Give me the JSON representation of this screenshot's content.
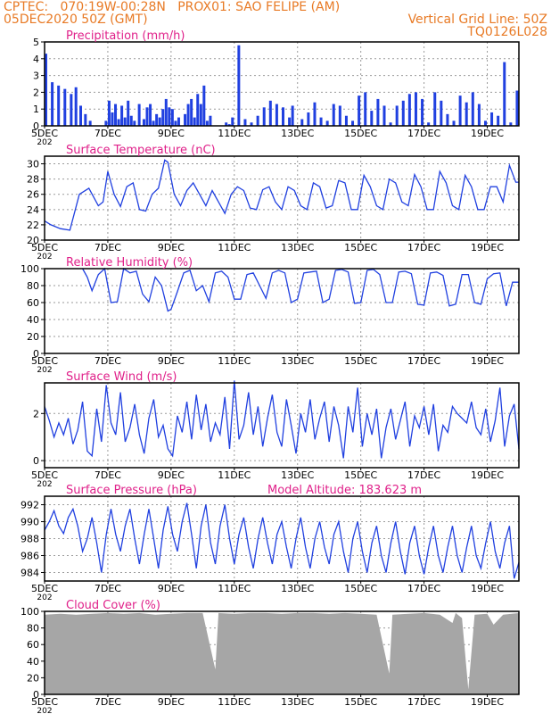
{
  "header": {
    "line1": "CPTEC:   070:19W-00:28N   PROX01: SAO FELIPE (AM)",
    "line2_left": "05DEC2020 50Z (GMT)",
    "line2_right": "Vertical Grid Line: 50Z",
    "line3_right": "TQ0126L028"
  },
  "x_axis": {
    "start_day": 5,
    "end_day": 20,
    "tick_days": [
      5,
      7,
      9,
      11,
      13,
      15,
      17,
      19
    ],
    "tick_labels": [
      "5DEC",
      "7DEC",
      "9DEC",
      "11DEC",
      "13DEC",
      "15DEC",
      "17DEC",
      "19DEC"
    ],
    "year_fragment": "202"
  },
  "colors": {
    "title": "#e0218a",
    "header": "#e87a25",
    "series": "#2040e0",
    "cloud": "#a6a6a6",
    "grid": "#9a9a9a"
  },
  "chart_data": [
    {
      "type": "bar",
      "title": "Precipitation (mm/h)",
      "ylim": [
        0,
        5
      ],
      "yticks": [
        0,
        1,
        2,
        3,
        4,
        5
      ],
      "x": [
        5.0,
        5.2,
        5.4,
        5.6,
        5.8,
        5.95,
        6.1,
        6.25,
        6.4,
        6.6,
        6.8,
        6.9,
        7.0,
        7.1,
        7.2,
        7.3,
        7.4,
        7.5,
        7.6,
        7.7,
        7.8,
        7.95,
        8.1,
        8.2,
        8.3,
        8.4,
        8.5,
        8.6,
        8.7,
        8.8,
        8.9,
        9.0,
        9.1,
        9.2,
        9.3,
        9.4,
        9.5,
        9.6,
        9.7,
        9.8,
        9.9,
        10.0,
        10.1,
        10.2,
        10.3,
        10.4,
        10.5,
        10.6,
        10.7,
        10.8,
        10.9,
        11.0,
        11.1,
        11.3,
        11.5,
        11.7,
        11.9,
        12.1,
        12.3,
        12.5,
        12.7,
        12.8,
        12.9,
        13.1,
        13.3,
        13.5,
        13.7,
        13.9,
        14.1,
        14.3,
        14.5,
        14.7,
        14.9,
        15.1,
        15.3,
        15.5,
        15.7,
        15.9,
        16.1,
        16.3,
        16.5,
        16.7,
        16.9,
        17.1,
        17.3,
        17.5,
        17.7,
        17.9,
        18.1,
        18.3,
        18.5,
        18.7,
        18.9,
        19.1,
        19.3,
        19.5,
        19.7,
        19.9
      ],
      "values": [
        4.3,
        2.6,
        2.4,
        2.2,
        1.9,
        2.3,
        1.2,
        0.7,
        0.3,
        0.0,
        0.0,
        0.3,
        1.5,
        0.8,
        1.3,
        0.4,
        1.2,
        0.5,
        1.5,
        0.6,
        0.3,
        1.3,
        0.4,
        1.1,
        1.3,
        0.3,
        0.7,
        0.5,
        1.0,
        1.6,
        1.1,
        1.0,
        0.3,
        0.5,
        0.0,
        0.7,
        1.3,
        1.6,
        0.5,
        1.9,
        1.3,
        2.4,
        0.3,
        0.6,
        0.0,
        0.0,
        0.0,
        0.0,
        0.2,
        0.1,
        0.5,
        0.0,
        4.8,
        0.4,
        0.2,
        0.6,
        1.1,
        1.5,
        1.3,
        1.1,
        0.5,
        1.2,
        0.0,
        0.4,
        0.8,
        1.4,
        0.5,
        0.3,
        1.3,
        1.2,
        0.6,
        0.3,
        1.8,
        2.0,
        0.9,
        1.6,
        1.2,
        0.2,
        1.2,
        1.5,
        1.9,
        2.0,
        1.6,
        0.2,
        2.0,
        1.5,
        0.7,
        0.3,
        1.8,
        1.4,
        2.0,
        1.3,
        0.3,
        0.8,
        0.6,
        3.8,
        0.2,
        2.1
      ]
    },
    {
      "type": "line",
      "title": "Surface Temperature (nC)",
      "ylim": [
        20,
        31
      ],
      "yticks": [
        20,
        22,
        24,
        26,
        28,
        30
      ],
      "x": [
        5.0,
        5.2,
        5.5,
        5.8,
        6.1,
        6.4,
        6.7,
        6.85,
        7.0,
        7.2,
        7.4,
        7.6,
        7.8,
        8.0,
        8.2,
        8.4,
        8.6,
        8.8,
        8.9,
        9.1,
        9.3,
        9.5,
        9.7,
        9.9,
        10.1,
        10.3,
        10.5,
        10.7,
        10.9,
        11.1,
        11.3,
        11.5,
        11.7,
        11.9,
        12.1,
        12.3,
        12.5,
        12.7,
        12.9,
        13.1,
        13.3,
        13.5,
        13.7,
        13.9,
        14.1,
        14.3,
        14.5,
        14.7,
        14.9,
        15.1,
        15.3,
        15.5,
        15.7,
        15.9,
        16.1,
        16.3,
        16.5,
        16.7,
        16.9,
        17.1,
        17.3,
        17.5,
        17.7,
        17.9,
        18.1,
        18.3,
        18.5,
        18.7,
        18.9,
        19.1,
        19.3,
        19.5,
        19.7,
        19.9,
        20.0
      ],
      "values": [
        22.5,
        22.0,
        21.5,
        21.3,
        26.0,
        26.8,
        24.5,
        25.0,
        29.0,
        26.0,
        24.4,
        27.0,
        27.5,
        24.0,
        23.8,
        26.0,
        26.8,
        30.5,
        30.2,
        26.0,
        24.5,
        26.5,
        27.5,
        26.0,
        24.5,
        26.5,
        25.0,
        23.5,
        26.0,
        27.0,
        26.5,
        24.2,
        24.0,
        26.6,
        27.0,
        25.0,
        24.0,
        27.0,
        26.5,
        24.5,
        24.0,
        27.5,
        27.0,
        24.2,
        24.5,
        27.8,
        27.5,
        24.0,
        24.0,
        28.5,
        27.0,
        24.5,
        24.0,
        28.0,
        27.5,
        25.0,
        24.5,
        28.6,
        27.0,
        24.0,
        24.0,
        29.0,
        27.5,
        24.5,
        24.0,
        28.5,
        27.0,
        24.0,
        24.0,
        27.0,
        27.0,
        25.0,
        29.8,
        27.6,
        27.6
      ]
    },
    {
      "type": "line",
      "title": "Relative Humidity (%)",
      "ylim": [
        0,
        100
      ],
      "yticks": [
        0,
        20,
        40,
        60,
        80,
        100
      ],
      "x": [
        6.2,
        6.35,
        6.5,
        6.7,
        6.9,
        7.0,
        7.1,
        7.3,
        7.5,
        7.7,
        7.9,
        8.1,
        8.3,
        8.5,
        8.7,
        8.9,
        9.0,
        9.2,
        9.4,
        9.6,
        9.8,
        10.0,
        10.2,
        10.4,
        10.6,
        10.8,
        11.0,
        11.2,
        11.4,
        11.6,
        11.8,
        12.0,
        12.2,
        12.4,
        12.6,
        12.8,
        13.0,
        13.2,
        13.4,
        13.6,
        13.8,
        14.0,
        14.2,
        14.4,
        14.6,
        14.8,
        15.0,
        15.2,
        15.4,
        15.6,
        15.8,
        16.0,
        16.2,
        16.4,
        16.6,
        16.8,
        17.0,
        17.2,
        17.4,
        17.6,
        17.8,
        18.0,
        18.2,
        18.4,
        18.6,
        18.8,
        19.0,
        19.2,
        19.4,
        19.6,
        19.8,
        20.0
      ],
      "values": [
        100,
        90,
        74,
        93,
        100,
        80,
        60,
        61,
        100,
        95,
        97,
        70,
        61,
        90,
        80,
        50,
        52,
        73,
        95,
        98,
        74,
        80,
        61,
        95,
        97,
        90,
        64,
        64,
        93,
        95,
        80,
        65,
        95,
        98,
        95,
        60,
        64,
        95,
        96,
        97,
        60,
        64,
        98,
        99,
        96,
        59,
        60,
        98,
        99,
        93,
        60,
        60,
        96,
        97,
        94,
        58,
        57,
        95,
        96,
        92,
        56,
        58,
        93,
        93,
        60,
        58,
        88,
        94,
        95,
        56,
        84,
        84
      ]
    },
    {
      "type": "line",
      "title": "Surface Wind (m/s)",
      "ylim": [
        -0.3,
        3.3
      ],
      "yticks": [
        0,
        2
      ],
      "x": [
        5.0,
        5.15,
        5.3,
        5.45,
        5.6,
        5.75,
        5.9,
        6.05,
        6.2,
        6.35,
        6.5,
        6.65,
        6.8,
        6.95,
        7.1,
        7.25,
        7.4,
        7.55,
        7.7,
        7.85,
        8.0,
        8.15,
        8.3,
        8.45,
        8.6,
        8.75,
        8.9,
        9.05,
        9.2,
        9.35,
        9.5,
        9.65,
        9.8,
        9.95,
        10.1,
        10.25,
        10.4,
        10.55,
        10.7,
        10.85,
        11.0,
        11.15,
        11.3,
        11.45,
        11.6,
        11.75,
        11.9,
        12.05,
        12.2,
        12.35,
        12.5,
        12.65,
        12.8,
        12.95,
        13.1,
        13.25,
        13.4,
        13.55,
        13.7,
        13.85,
        14.0,
        14.15,
        14.3,
        14.45,
        14.6,
        14.75,
        14.9,
        15.05,
        15.2,
        15.35,
        15.5,
        15.65,
        15.8,
        15.95,
        16.1,
        16.25,
        16.4,
        16.55,
        16.7,
        16.85,
        17.0,
        17.15,
        17.3,
        17.45,
        17.6,
        17.75,
        17.9,
        18.05,
        18.2,
        18.35,
        18.5,
        18.65,
        18.8,
        18.95,
        19.1,
        19.25,
        19.4,
        19.55,
        19.7,
        19.85,
        20.0
      ],
      "values": [
        2.3,
        1.7,
        1.0,
        1.6,
        1.1,
        1.8,
        0.7,
        1.3,
        2.5,
        0.4,
        0.2,
        2.2,
        0.8,
        3.2,
        1.6,
        1.1,
        2.9,
        0.8,
        1.4,
        2.4,
        1.1,
        0.3,
        1.8,
        2.6,
        1.0,
        1.5,
        0.5,
        0.2,
        1.9,
        1.2,
        2.5,
        0.9,
        2.8,
        1.3,
        2.4,
        0.8,
        1.6,
        1.1,
        2.7,
        0.5,
        3.4,
        0.9,
        1.5,
        2.9,
        1.1,
        2.3,
        0.6,
        1.8,
        2.8,
        1.2,
        0.6,
        2.6,
        1.5,
        0.3,
        2.0,
        1.2,
        2.6,
        0.9,
        1.8,
        2.5,
        0.8,
        2.3,
        1.5,
        0.1,
        2.3,
        1.2,
        3.1,
        0.6,
        2.0,
        1.1,
        2.2,
        0.1,
        1.4,
        2.2,
        0.9,
        1.7,
        2.5,
        0.6,
        1.9,
        1.4,
        2.3,
        1.1,
        2.4,
        0.4,
        1.5,
        1.2,
        2.3,
        2.0,
        1.8,
        1.6,
        2.5,
        1.4,
        1.1,
        2.2,
        0.8,
        1.7,
        3.1,
        0.6,
        1.9,
        2.4,
        0.5
      ]
    },
    {
      "type": "line",
      "title": "Surface Pressure (hPa)",
      "annotation": "Model Altitude: 183.623  m",
      "ylim": [
        983,
        993
      ],
      "yticks": [
        984,
        986,
        988,
        990,
        992
      ],
      "x": [
        5.0,
        5.15,
        5.3,
        5.45,
        5.6,
        5.75,
        5.9,
        6.05,
        6.2,
        6.35,
        6.5,
        6.65,
        6.8,
        6.95,
        7.1,
        7.25,
        7.4,
        7.55,
        7.7,
        7.85,
        8.0,
        8.15,
        8.3,
        8.45,
        8.6,
        8.75,
        8.9,
        9.05,
        9.2,
        9.35,
        9.5,
        9.65,
        9.8,
        9.95,
        10.1,
        10.25,
        10.4,
        10.55,
        10.7,
        10.85,
        11.0,
        11.15,
        11.3,
        11.45,
        11.6,
        11.75,
        11.9,
        12.05,
        12.2,
        12.35,
        12.5,
        12.65,
        12.8,
        12.95,
        13.1,
        13.25,
        13.4,
        13.55,
        13.7,
        13.85,
        14.0,
        14.15,
        14.3,
        14.45,
        14.6,
        14.75,
        14.9,
        15.05,
        15.2,
        15.35,
        15.5,
        15.65,
        15.8,
        15.95,
        16.1,
        16.25,
        16.4,
        16.55,
        16.7,
        16.85,
        17.0,
        17.15,
        17.3,
        17.45,
        17.6,
        17.75,
        17.9,
        18.05,
        18.2,
        18.35,
        18.5,
        18.65,
        18.8,
        18.95,
        19.1,
        19.25,
        19.4,
        19.55,
        19.7,
        19.85,
        20.0
      ],
      "values": [
        989.0,
        990.0,
        991.3,
        989.5,
        988.6,
        990.5,
        991.5,
        989.5,
        986.5,
        988.0,
        990.5,
        987.5,
        984.0,
        988.5,
        991.5,
        988.5,
        986.5,
        989.5,
        991.5,
        988.0,
        985.0,
        988.5,
        991.5,
        988.0,
        984.5,
        989.0,
        991.8,
        988.5,
        986.5,
        990.0,
        992.2,
        988.5,
        984.5,
        989.5,
        992.0,
        987.5,
        985.0,
        989.5,
        992.0,
        988.0,
        985.0,
        988.5,
        990.5,
        987.0,
        984.5,
        988.0,
        990.5,
        987.5,
        985.0,
        988.5,
        990.0,
        987.0,
        984.5,
        988.0,
        990.5,
        987.0,
        984.5,
        988.0,
        990.0,
        987.0,
        985.0,
        988.5,
        990.0,
        986.5,
        984.0,
        988.0,
        990.0,
        986.5,
        984.0,
        987.5,
        989.5,
        986.0,
        984.0,
        987.5,
        990.0,
        986.5,
        983.8,
        987.5,
        989.5,
        986.0,
        983.8,
        987.0,
        989.5,
        986.0,
        984.0,
        987.0,
        989.5,
        986.0,
        984.0,
        987.0,
        989.5,
        986.0,
        984.5,
        987.5,
        990.0,
        986.5,
        984.5,
        987.5,
        989.5,
        983.3,
        985.2
      ]
    },
    {
      "type": "area",
      "title": "Cloud Cover (%)",
      "ylim": [
        0,
        100
      ],
      "yticks": [
        0,
        20,
        40,
        60,
        80,
        100
      ],
      "x": [
        5.0,
        5.5,
        6.0,
        6.5,
        7.0,
        7.5,
        8.0,
        8.5,
        9.0,
        9.5,
        10.0,
        10.4,
        10.5,
        11.0,
        11.5,
        12.0,
        12.5,
        13.0,
        13.5,
        14.0,
        14.5,
        15.0,
        15.5,
        15.9,
        16.0,
        16.5,
        17.0,
        17.5,
        17.9,
        18.0,
        18.2,
        18.4,
        18.6,
        19.0,
        19.2,
        19.5,
        20.0
      ],
      "values": [
        96,
        97,
        96,
        97,
        98,
        97,
        98,
        96,
        97,
        98,
        98,
        30,
        98,
        97,
        98,
        98,
        97,
        98,
        98,
        97,
        98,
        97,
        96,
        25,
        96,
        97,
        98,
        96,
        86,
        98,
        92,
        6,
        96,
        97,
        84,
        96,
        98
      ]
    }
  ]
}
